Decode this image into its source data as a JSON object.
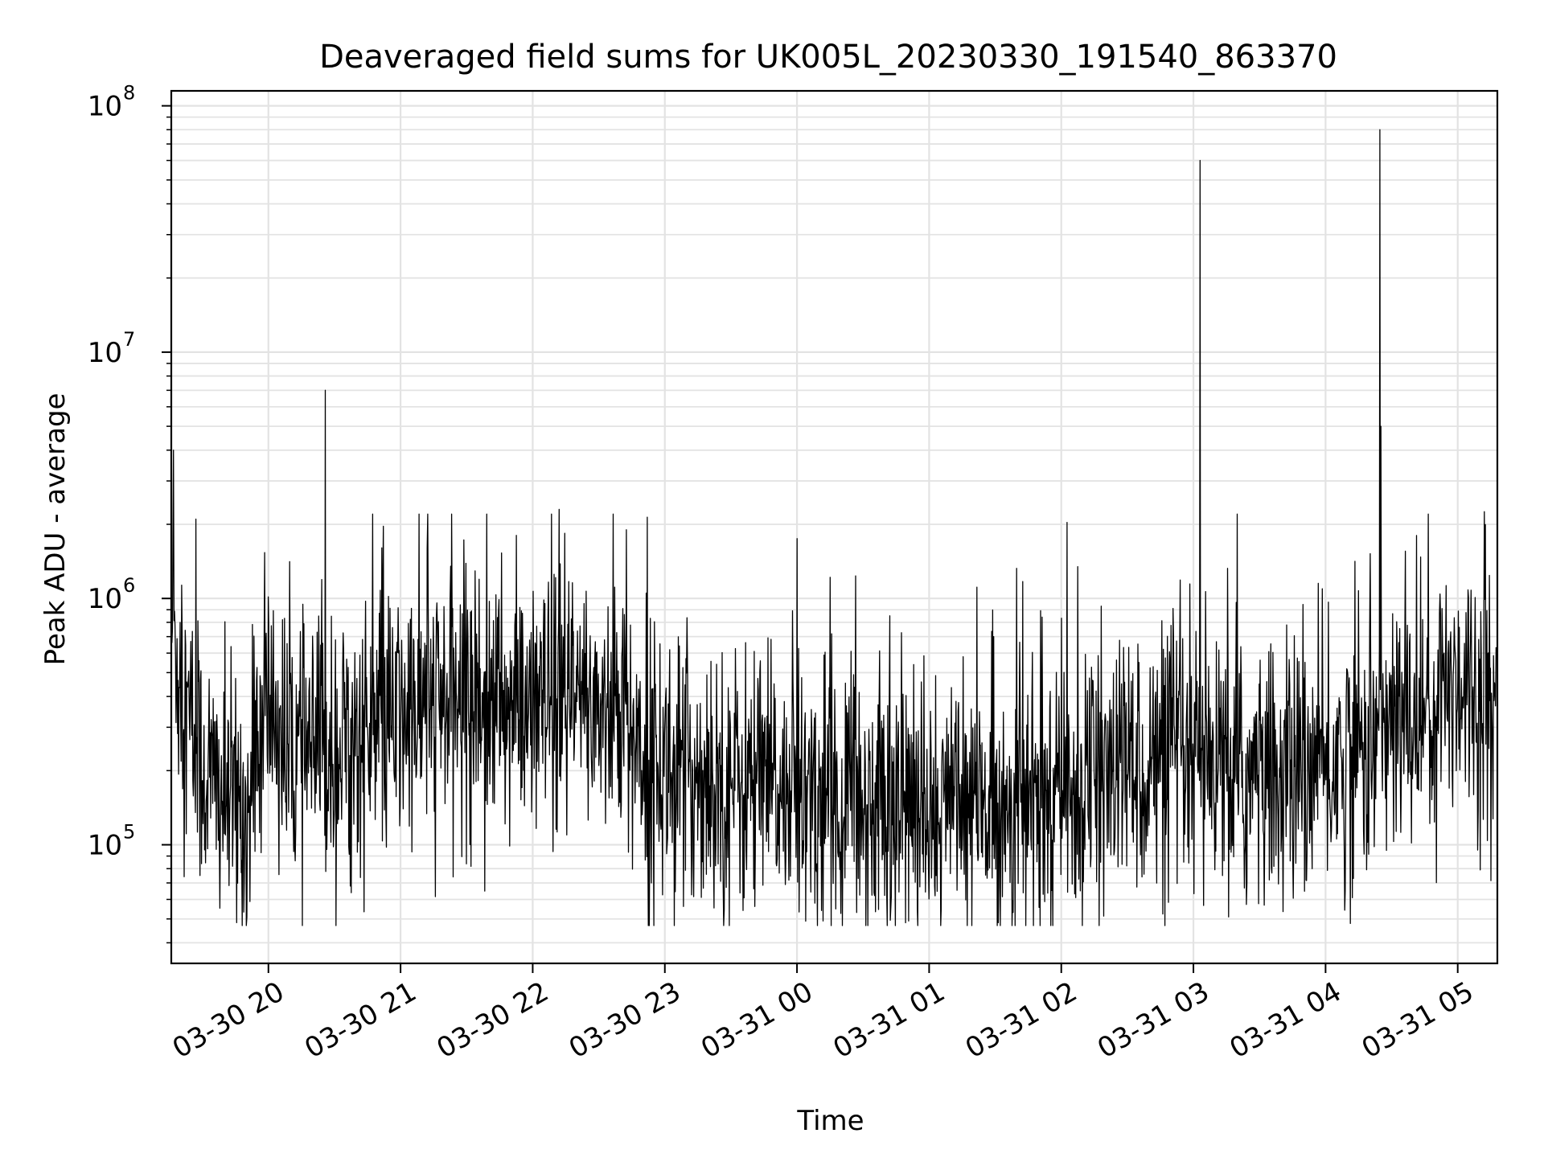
{
  "chart_data": {
    "type": "line",
    "title": "Deaveraged field sums for UK005L_20230330_191540_863370",
    "xlabel": "Time",
    "ylabel": "Peak ADU - average",
    "yscale": "log",
    "ylim": [
      33000,
      115000000
    ],
    "xlim_hours": [
      19.265,
      29.3
    ],
    "grid": true,
    "x_ticks": [
      {
        "label": "03-30 20",
        "hour": 20
      },
      {
        "label": "03-30 21",
        "hour": 21
      },
      {
        "label": "03-30 22",
        "hour": 22
      },
      {
        "label": "03-30 23",
        "hour": 23
      },
      {
        "label": "03-31 00",
        "hour": 24
      },
      {
        "label": "03-31 01",
        "hour": 25
      },
      {
        "label": "03-31 02",
        "hour": 26
      },
      {
        "label": "03-31 03",
        "hour": 27
      },
      {
        "label": "03-31 04",
        "hour": 28
      },
      {
        "label": "03-31 05",
        "hour": 29
      }
    ],
    "y_ticks": [
      {
        "base": "10",
        "exp": "5",
        "value": 100000
      },
      {
        "base": "10",
        "exp": "6",
        "value": 1000000
      },
      {
        "base": "10",
        "exp": "7",
        "value": 10000000
      },
      {
        "base": "10",
        "exp": "8",
        "value": 100000000
      }
    ],
    "series": [
      {
        "name": "deaveraged field sums",
        "color": "#000000",
        "baseline_hour_level": [
          [
            19.27,
            800000
          ],
          [
            19.35,
            400000
          ],
          [
            19.5,
            200000
          ],
          [
            19.7,
            150000
          ],
          [
            19.85,
            130000
          ],
          [
            20.0,
            400000
          ],
          [
            20.15,
            220000
          ],
          [
            20.5,
            240000
          ],
          [
            21.0,
            320000
          ],
          [
            21.5,
            400000
          ],
          [
            22.0,
            330000
          ],
          [
            22.5,
            380000
          ],
          [
            23.0,
            200000
          ],
          [
            23.5,
            180000
          ],
          [
            24.0,
            160000
          ],
          [
            24.5,
            150000
          ],
          [
            25.0,
            140000
          ],
          [
            25.5,
            140000
          ],
          [
            26.0,
            150000
          ],
          [
            26.5,
            210000
          ],
          [
            27.0,
            200000
          ],
          [
            27.5,
            180000
          ],
          [
            28.0,
            200000
          ],
          [
            28.5,
            300000
          ],
          [
            28.8,
            350000
          ],
          [
            29.0,
            500000
          ],
          [
            29.3,
            350000
          ]
        ],
        "spikes": [
          {
            "hour": 19.28,
            "value": 4000000
          },
          {
            "hour": 19.45,
            "value": 2100000
          },
          {
            "hour": 20.43,
            "value": 7000000
          },
          {
            "hour": 21.2,
            "value": 1600000
          },
          {
            "hour": 22.2,
            "value": 2300000
          },
          {
            "hour": 24.0,
            "value": 1750000
          },
          {
            "hour": 27.05,
            "value": 60000000
          },
          {
            "hour": 28.41,
            "value": 80000000
          },
          {
            "hour": 28.42,
            "value": 5000000
          },
          {
            "hour": 29.2,
            "value": 2250000
          }
        ],
        "min_value": 47000
      }
    ]
  }
}
